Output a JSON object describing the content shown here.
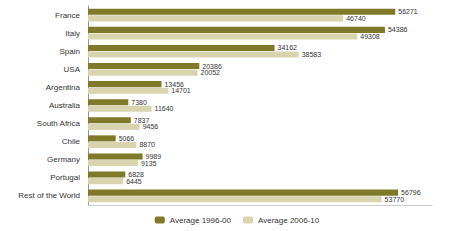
{
  "chart_data": {
    "type": "bar",
    "orientation": "horizontal",
    "categories": [
      "France",
      "Italy",
      "Spain",
      "USA",
      "Argentina",
      "Australia",
      "South Africa",
      "Chile",
      "Germany",
      "Portugal",
      "Rest of the World"
    ],
    "series": [
      {
        "name": "Average 1996-00",
        "color": "#7f7a2a",
        "values": [
          56271,
          54386,
          34162,
          20386,
          13456,
          7380,
          7837,
          5066,
          9989,
          6828,
          56796
        ]
      },
      {
        "name": "Average 2006-10",
        "color": "#d9d4b0",
        "values": [
          46740,
          49308,
          38583,
          20052,
          14701,
          11640,
          9456,
          8870,
          9135,
          6445,
          53770
        ]
      }
    ],
    "xlim": [
      0,
      63000
    ],
    "data_labels": true,
    "tick_labels": "y",
    "grid": false,
    "legend": "bottom"
  }
}
